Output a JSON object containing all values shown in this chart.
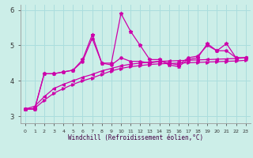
{
  "xlabel": "Windchill (Refroidissement éolien,°C)",
  "bg_color": "#cceee8",
  "grid_color": "#aadddd",
  "line_color": "#cc00aa",
  "x": [
    0,
    1,
    2,
    3,
    4,
    5,
    6,
    7,
    8,
    9,
    10,
    11,
    12,
    13,
    14,
    15,
    16,
    17,
    18,
    19,
    20,
    21,
    22,
    23
  ],
  "series1": [
    3.2,
    3.2,
    4.2,
    4.2,
    4.25,
    4.3,
    4.6,
    5.3,
    4.5,
    4.5,
    5.9,
    5.4,
    5.0,
    4.6,
    4.6,
    4.45,
    4.4,
    4.6,
    4.65,
    5.05,
    4.85,
    5.05,
    4.65,
    4.65
  ],
  "series2": [
    3.2,
    3.2,
    4.2,
    4.2,
    4.25,
    4.3,
    4.55,
    5.2,
    4.5,
    4.45,
    4.65,
    4.55,
    4.55,
    4.5,
    4.55,
    4.5,
    4.45,
    4.65,
    4.7,
    5.0,
    4.85,
    4.85,
    4.65,
    4.65
  ],
  "trend1": [
    3.2,
    3.28,
    3.55,
    3.78,
    3.9,
    4.0,
    4.1,
    4.18,
    4.28,
    4.35,
    4.42,
    4.47,
    4.5,
    4.53,
    4.55,
    4.56,
    4.57,
    4.58,
    4.59,
    4.6,
    4.61,
    4.62,
    4.63,
    4.65
  ],
  "trend2": [
    3.2,
    3.22,
    3.45,
    3.65,
    3.78,
    3.9,
    4.0,
    4.08,
    4.18,
    4.28,
    4.35,
    4.4,
    4.43,
    4.46,
    4.48,
    4.49,
    4.5,
    4.51,
    4.52,
    4.53,
    4.54,
    4.55,
    4.56,
    4.58
  ],
  "ylim": [
    2.8,
    6.15
  ],
  "xlim": [
    -0.5,
    23.5
  ],
  "yticks": [
    3,
    4,
    5,
    6
  ],
  "xticks": [
    0,
    1,
    2,
    3,
    4,
    5,
    6,
    7,
    8,
    9,
    10,
    11,
    12,
    13,
    14,
    15,
    16,
    17,
    18,
    19,
    20,
    21,
    22,
    23
  ]
}
